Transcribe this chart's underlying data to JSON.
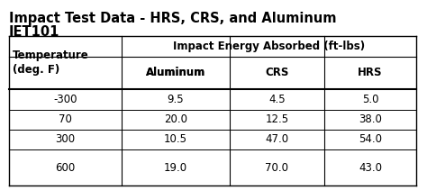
{
  "title_line1": "Impact Test Data - HRS, CRS, and Aluminum",
  "title_line2": "IET101",
  "group_header": "Impact Energy Absorbed (ft-lbs)",
  "col_headers": [
    "Temperature\n(deg. F)",
    "Aluminum",
    "CRS",
    "HRS"
  ],
  "rows": [
    [
      "-300",
      "9.5",
      "4.5",
      "5.0"
    ],
    [
      "70",
      "20.0",
      "12.5",
      "38.0"
    ],
    [
      "300",
      "10.5",
      "47.0",
      "54.0"
    ],
    [
      "600",
      "19.0",
      "70.0",
      "43.0"
    ]
  ],
  "bg_color": "#ffffff",
  "text_color": "#000000",
  "title_fontsize": 10.5,
  "header_fontsize": 8.5,
  "cell_fontsize": 8.5
}
